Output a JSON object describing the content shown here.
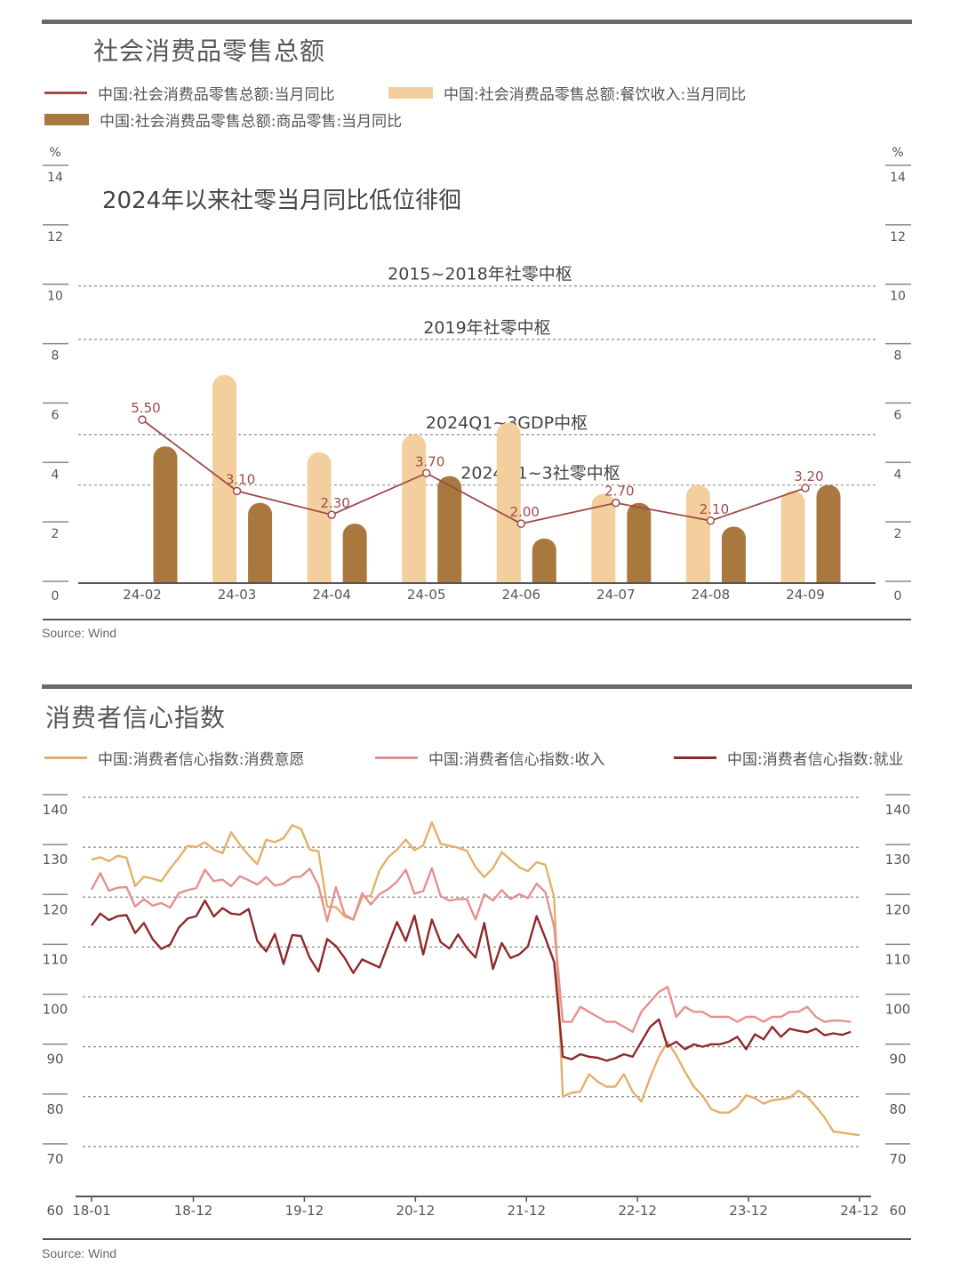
{
  "colors": {
    "total_line": "#a04a4a",
    "catering": "#f2cf9c",
    "goods": "#a8783e",
    "intention": "#e3b06a",
    "income": "#e59090",
    "employment": "#8f2a2a",
    "grid": "#777777"
  },
  "panel1": {
    "title": "社会消费品零售总额",
    "source": "Source: Wind"
  },
  "panel2": {
    "title": "消费者信心指数",
    "source": "Source: Wind"
  },
  "chart_data": [
    {
      "type": "bar",
      "title": "社会消费品零售总额",
      "subtitle": "2024年以来社零当月同比低位徘徊",
      "unit": "%",
      "ylim": [
        0,
        14
      ],
      "yticks": [
        "0",
        "2",
        "4",
        "6",
        "8",
        "10",
        "12",
        "14"
      ],
      "categories": [
        "24-02",
        "24-03",
        "24-04",
        "24-05",
        "24-06",
        "24-07",
        "24-08",
        "24-09"
      ],
      "series": [
        {
          "name": "中国:社会消费品零售总额:当月同比",
          "kind": "line",
          "color": "#a04a4a",
          "values": [
            5.5,
            3.1,
            2.3,
            3.7,
            2.0,
            2.7,
            2.1,
            3.2
          ],
          "labels": [
            "5.50",
            "3.10",
            "2.30",
            "3.70",
            "2.00",
            "2.70",
            "2.10",
            "3.20"
          ]
        },
        {
          "name": "中国:社会消费品零售总额:餐饮收入:当月同比",
          "kind": "bar",
          "color": "#f2cf9c",
          "values": [
            null,
            7.0,
            4.4,
            5.0,
            5.4,
            3.0,
            3.3,
            3.1
          ]
        },
        {
          "name": "中国:社会消费品零售总额:商品零售:当月同比",
          "kind": "bar",
          "color": "#a8783e",
          "values": [
            4.6,
            2.7,
            2.0,
            3.6,
            1.5,
            2.7,
            1.9,
            3.3
          ]
        }
      ],
      "reference_lines": [
        {
          "label": "2015~2018年社零中枢",
          "value": 10.0
        },
        {
          "label": "2019年社零中枢",
          "value": 8.2
        },
        {
          "label": "2024Q1~3GDP中枢",
          "value": 5.0
        },
        {
          "label": "2024Q1~3社零中枢",
          "value": 3.3
        }
      ],
      "grid": true,
      "legend": "top"
    },
    {
      "type": "line",
      "title": "消费者信心指数",
      "ylim": [
        60,
        140
      ],
      "yticks": [
        "60",
        "70",
        "80",
        "90",
        "100",
        "110",
        "120",
        "130",
        "140"
      ],
      "xlim": [
        "18-01",
        "24-12"
      ],
      "xticks": [
        "18-01",
        "18-12",
        "19-12",
        "20-12",
        "21-12",
        "22-12",
        "23-12",
        "24-12"
      ],
      "series": [
        {
          "name": "中国:消费者信心指数:消费意愿",
          "color": "#e3b06a",
          "values": [
            127.5,
            128,
            127.2,
            128.3,
            127.9,
            122.2,
            124.1,
            123.7,
            123.2,
            125.7,
            127.9,
            130.3,
            130,
            131,
            129.5,
            128.8,
            133,
            130.5,
            128.4,
            126.6,
            131.5,
            131,
            131.8,
            134.4,
            133.7,
            129.5,
            129.2,
            118.1,
            118,
            116.1,
            115.5,
            120,
            120.3,
            125.4,
            128,
            129.5,
            131.5,
            129.4,
            130.4,
            135,
            130.7,
            130.3,
            129.9,
            129.3,
            126,
            124,
            125.8,
            129,
            127.5,
            126,
            125.2,
            127,
            126.5,
            120,
            80,
            80.8,
            81,
            84.5,
            83,
            82,
            82,
            84.5,
            81,
            79,
            83.8,
            88,
            91,
            88.3,
            85,
            82,
            80.2,
            77.5,
            76.8,
            76.8,
            78,
            80.3,
            79.7,
            78.6,
            79.3,
            79.5,
            79.8,
            81.2,
            80,
            78,
            75.8,
            73,
            72.8,
            72.5,
            72.3
          ]
        },
        {
          "name": "中国:消费者信心指数:收入",
          "color": "#e59090",
          "values": [
            121.5,
            124.8,
            121.3,
            121.9,
            122,
            118.1,
            119.6,
            118.3,
            118.8,
            117.9,
            120.8,
            121.4,
            121.8,
            125.5,
            123.2,
            123.5,
            122.2,
            124.2,
            123.4,
            122.5,
            124,
            122.3,
            122.7,
            124,
            124.1,
            125.7,
            122.3,
            115.2,
            122,
            116.5,
            115.5,
            120.8,
            118.5,
            120.6,
            121.6,
            123.1,
            125.5,
            120.7,
            121.2,
            125.8,
            120.2,
            119.3,
            119.6,
            119.6,
            115.5,
            120.6,
            119.3,
            121.4,
            119.6,
            120.6,
            119.8,
            122.7,
            121,
            114,
            95,
            95,
            98,
            97,
            96,
            95,
            95,
            94,
            93,
            97,
            99,
            101,
            102,
            96,
            98,
            97,
            97,
            96,
            96,
            96,
            95,
            96,
            96,
            95,
            96,
            96,
            97,
            97,
            98,
            96,
            95,
            95.3,
            95.2,
            95
          ]
        },
        {
          "name": "中国:消费者信心指数:就业",
          "color": "#8f2a2a",
          "values": [
            114.3,
            116.7,
            115.4,
            116.2,
            116.4,
            112.8,
            114.8,
            111.6,
            109.6,
            110.5,
            113.9,
            115.7,
            116.2,
            119.3,
            116.1,
            117.8,
            116.7,
            116.5,
            117.6,
            111.2,
            109.1,
            112.6,
            106.6,
            112.4,
            112.2,
            107.8,
            105.1,
            111.6,
            110.2,
            107.8,
            104.8,
            107.5,
            106.7,
            105.9,
            110.5,
            115,
            111.2,
            116.3,
            108.5,
            115.5,
            111,
            109.7,
            112.5,
            109.8,
            107.9,
            114.8,
            105.6,
            110.8,
            107.8,
            108.5,
            110.1,
            116.2,
            111.8,
            107,
            88,
            87.5,
            88.5,
            88,
            87.8,
            87.2,
            87.7,
            88.5,
            88,
            91,
            94,
            95.5,
            90,
            91,
            89.5,
            90.5,
            90,
            90.5,
            90.5,
            91,
            92,
            89.5,
            92.5,
            91.5,
            94,
            92,
            93.6,
            93.2,
            92.9,
            93.6,
            92.3,
            92.7,
            92.4,
            93
          ]
        }
      ],
      "grid": true,
      "legend": "top"
    }
  ]
}
